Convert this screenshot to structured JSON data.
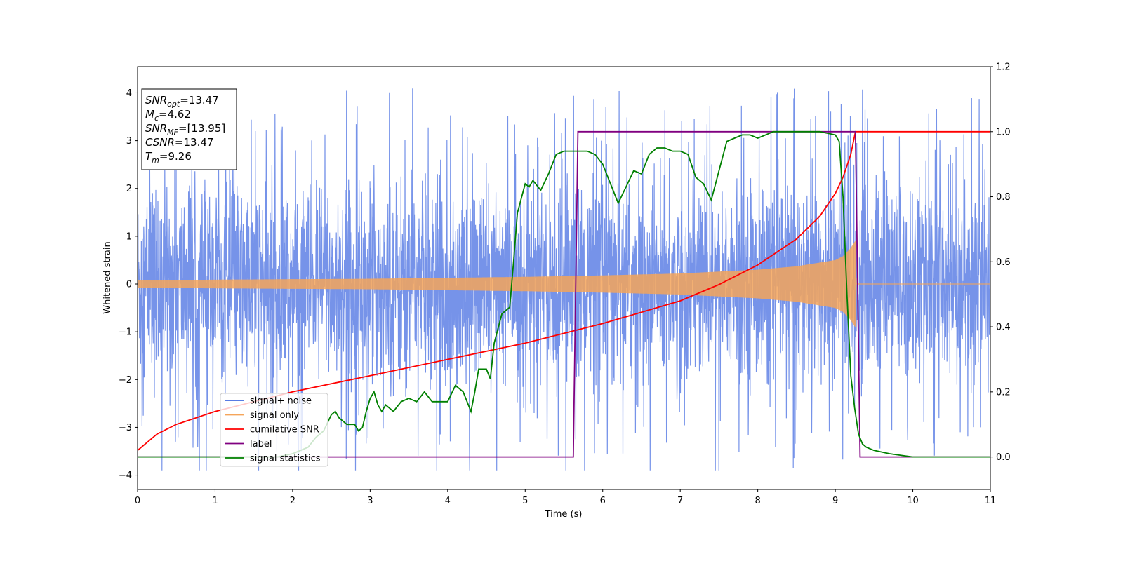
{
  "chart_data": {
    "type": "line",
    "xlabel": "Time (s)",
    "ylabel": "Whitened strain",
    "xlim": [
      0,
      11
    ],
    "ylim_left": [
      -4.3,
      4.55
    ],
    "ylim_right": [
      -0.1,
      1.2
    ],
    "x_ticks": [
      0,
      1,
      2,
      3,
      4,
      5,
      6,
      7,
      8,
      9,
      10,
      11
    ],
    "y_left_ticks": [
      -4,
      -3,
      -2,
      -1,
      0,
      1,
      2,
      3,
      4
    ],
    "y_right_ticks": [
      0.0,
      0.2,
      0.4,
      0.6,
      0.8,
      1.0,
      1.2
    ],
    "grid": false,
    "legend_position": "lower-left",
    "colors": {
      "noise": "#4169e1",
      "signal": "#f5a55a",
      "snr": "#ff0000",
      "label": "#800080",
      "stat": "#008000"
    },
    "annotation_lines": [
      {
        "sym": "SNR",
        "sub": "opt",
        "rest": "=13.47"
      },
      {
        "sym": "M",
        "sub": "c",
        "rest": "=4.62"
      },
      {
        "sym": "SNR",
        "sub": "MF",
        "rest": "=[13.95]"
      },
      {
        "sym": "CSNR",
        "sub": "",
        "rest": "=13.47"
      },
      {
        "sym": "T",
        "sub": "m",
        "rest": "=9.26"
      }
    ],
    "series": [
      {
        "name": "signal+ noise",
        "axis": "left",
        "kind": "noise",
        "description_values": {
          "std": 1.0,
          "peak_min": -3.9,
          "peak_max": 4.2,
          "t_start": 0,
          "t_end": 11
        }
      },
      {
        "name": "signal only",
        "axis": "left",
        "kind": "chirp",
        "envelope_x": [
          0,
          1,
          2,
          3,
          4,
          5,
          6,
          7,
          8,
          8.5,
          9,
          9.1,
          9.2,
          9.26,
          9.27,
          11
        ],
        "envelope_y": [
          0.08,
          0.09,
          0.1,
          0.11,
          0.13,
          0.15,
          0.18,
          0.22,
          0.3,
          0.37,
          0.5,
          0.58,
          0.75,
          0.9,
          0.0,
          0.0
        ]
      },
      {
        "name": "cumilative SNR",
        "axis": "right",
        "x": [
          0,
          0.25,
          0.5,
          1,
          1.5,
          2,
          3,
          4,
          5,
          6,
          7,
          7.5,
          8,
          8.5,
          8.8,
          9,
          9.1,
          9.2,
          9.26,
          11
        ],
        "y": [
          0.02,
          0.07,
          0.1,
          0.14,
          0.17,
          0.2,
          0.25,
          0.3,
          0.35,
          0.41,
          0.48,
          0.53,
          0.59,
          0.67,
          0.74,
          0.81,
          0.86,
          0.93,
          1.0,
          1.0
        ]
      },
      {
        "name": "label",
        "axis": "right",
        "x": [
          0,
          5.62,
          5.68,
          9.26,
          9.32,
          11
        ],
        "y": [
          0.0,
          0.0,
          1.0,
          1.0,
          0.0,
          0.0
        ]
      },
      {
        "name": "signal statistics",
        "axis": "right",
        "x": [
          0,
          1.5,
          1.8,
          2.0,
          2.2,
          2.3,
          2.4,
          2.5,
          2.55,
          2.6,
          2.7,
          2.8,
          2.85,
          2.9,
          2.95,
          3.0,
          3.05,
          3.1,
          3.15,
          3.2,
          3.3,
          3.4,
          3.5,
          3.6,
          3.7,
          3.8,
          3.9,
          4.0,
          4.1,
          4.2,
          4.3,
          4.35,
          4.4,
          4.5,
          4.55,
          4.6,
          4.7,
          4.8,
          4.85,
          4.9,
          5.0,
          5.05,
          5.1,
          5.2,
          5.3,
          5.4,
          5.5,
          5.6,
          5.7,
          5.8,
          5.9,
          6.0,
          6.1,
          6.2,
          6.3,
          6.4,
          6.5,
          6.6,
          6.7,
          6.8,
          6.9,
          7.0,
          7.1,
          7.2,
          7.3,
          7.4,
          7.5,
          7.6,
          7.7,
          7.8,
          7.9,
          8.0,
          8.1,
          8.2,
          8.5,
          8.8,
          9.0,
          9.05,
          9.1,
          9.15,
          9.2,
          9.25,
          9.3,
          9.35,
          9.4,
          9.5,
          9.7,
          10.0,
          11
        ],
        "y": [
          0.0,
          0.0,
          0.0,
          0.01,
          0.03,
          0.06,
          0.08,
          0.13,
          0.14,
          0.12,
          0.1,
          0.1,
          0.08,
          0.09,
          0.14,
          0.18,
          0.2,
          0.16,
          0.14,
          0.16,
          0.14,
          0.17,
          0.18,
          0.17,
          0.2,
          0.17,
          0.17,
          0.17,
          0.22,
          0.2,
          0.14,
          0.2,
          0.27,
          0.27,
          0.24,
          0.35,
          0.44,
          0.46,
          0.6,
          0.75,
          0.84,
          0.83,
          0.85,
          0.82,
          0.87,
          0.93,
          0.94,
          0.94,
          0.94,
          0.94,
          0.93,
          0.9,
          0.84,
          0.78,
          0.83,
          0.88,
          0.87,
          0.93,
          0.95,
          0.95,
          0.94,
          0.94,
          0.93,
          0.86,
          0.84,
          0.79,
          0.88,
          0.97,
          0.98,
          0.99,
          0.99,
          0.98,
          0.99,
          1.0,
          1.0,
          1.0,
          0.99,
          0.97,
          0.8,
          0.5,
          0.25,
          0.15,
          0.07,
          0.04,
          0.03,
          0.02,
          0.01,
          0.0,
          0.0
        ]
      }
    ]
  }
}
